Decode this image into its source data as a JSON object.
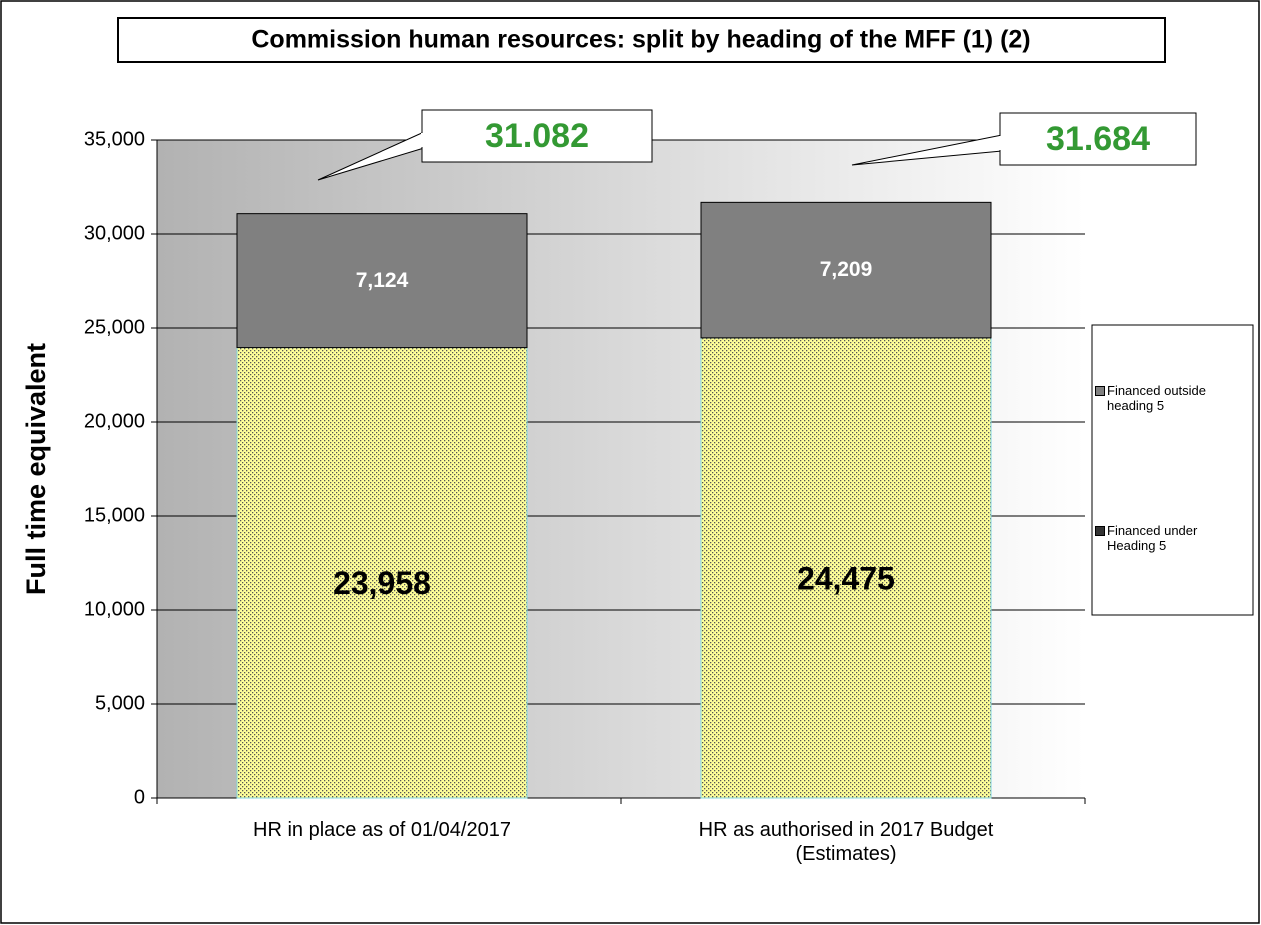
{
  "chart_data": {
    "type": "stacked-bar",
    "title": "Commission human resources: split by heading of the MFF (1) (2)",
    "y_label": "Full time equivalent",
    "categories": [
      "HR in place as of 01/04/2017",
      "HR as authorised in 2017 Budget (Estimates)"
    ],
    "series": [
      {
        "name": "Financed under Heading 5",
        "color": "#ffff99",
        "values": [
          23958,
          24475
        ],
        "value_labels": [
          "23,958",
          "24,475"
        ]
      },
      {
        "name": "Financed outside heading 5",
        "color": "#808080",
        "values": [
          7124,
          7209
        ],
        "value_labels": [
          "7,124",
          "7,209"
        ]
      }
    ],
    "annotations": [
      {
        "text": "31.082",
        "color": "#339933"
      },
      {
        "text": "31.684",
        "color": "#339933"
      }
    ],
    "ylim": [
      0,
      35000
    ],
    "yticks": [
      0,
      {
        "value": 5000,
        "label": "5,000"
      },
      {
        "value": 10000,
        "label": "10,000"
      },
      {
        "value": 15000,
        "label": "15,000"
      },
      {
        "value": 20000,
        "label": "20,000"
      },
      {
        "value": 25000,
        "label": "25,000"
      },
      {
        "value": 30000,
        "label": "30,000"
      },
      {
        "value": 35000,
        "label": "35,000"
      }
    ],
    "grid": true,
    "legend": "right"
  }
}
